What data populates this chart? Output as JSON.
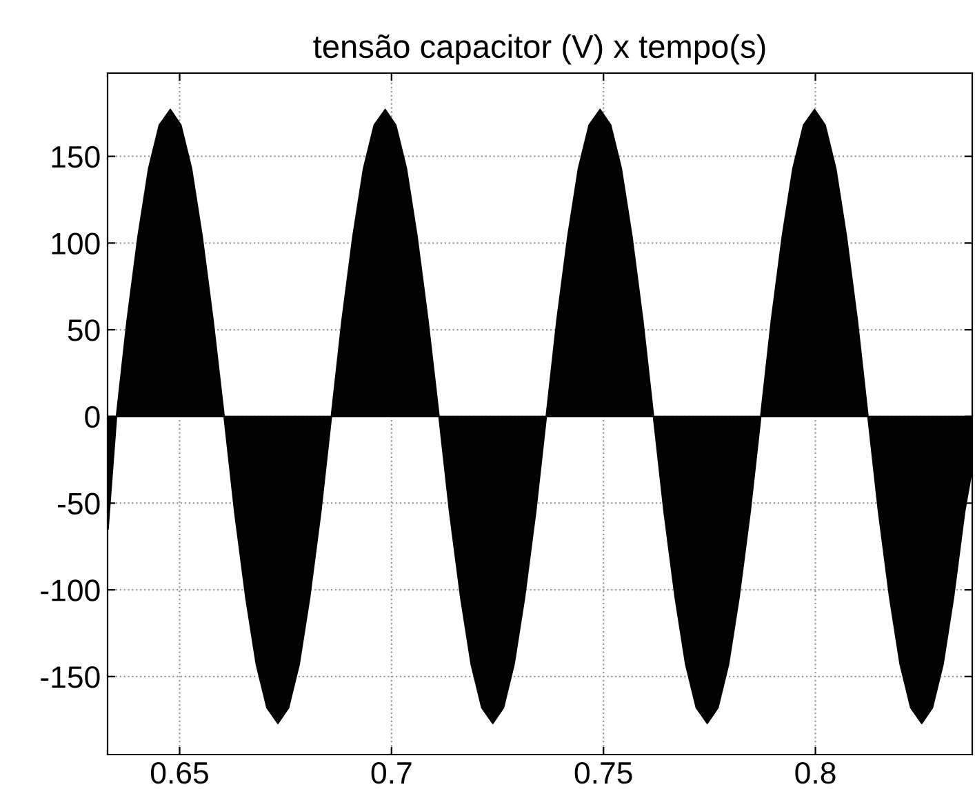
{
  "chart_data": {
    "type": "area",
    "title": "tensão capacitor (V) x tempo(s)",
    "grid": true,
    "xlim": [
      0.633,
      0.837
    ],
    "ylim": [
      -195,
      198
    ],
    "xticks": [
      0.65,
      0.7,
      0.75,
      0.8
    ],
    "yticks": [
      -150,
      -100,
      -50,
      0,
      50,
      100,
      150
    ],
    "series": [
      {
        "color": "#000000",
        "x": [
          0.6331,
          0.6351,
          0.6376,
          0.6402,
          0.6427,
          0.6452,
          0.6478,
          0.6503,
          0.6528,
          0.6553,
          0.6579,
          0.6605,
          0.663,
          0.6656,
          0.6681,
          0.6706,
          0.6732,
          0.6757,
          0.6782,
          0.6807,
          0.6833,
          0.6858,
          0.6883,
          0.6909,
          0.6934,
          0.6959,
          0.6985,
          0.701,
          0.7035,
          0.706,
          0.7086,
          0.7112,
          0.7137,
          0.7163,
          0.7188,
          0.7213,
          0.7239,
          0.7264,
          0.7289,
          0.7314,
          0.734,
          0.7365,
          0.739,
          0.7416,
          0.7441,
          0.7466,
          0.7492,
          0.7517,
          0.7542,
          0.7567,
          0.7593,
          0.7618,
          0.7643,
          0.7669,
          0.7694,
          0.7719,
          0.7745,
          0.777,
          0.7795,
          0.782,
          0.7846,
          0.7871,
          0.7896,
          0.7922,
          0.7947,
          0.7972,
          0.7998,
          0.8023,
          0.8048,
          0.8073,
          0.8099,
          0.8124,
          0.8149,
          0.8175,
          0.82,
          0.8225,
          0.8251,
          0.8276,
          0.8301,
          0.8326,
          0.8352,
          0.837
        ],
        "values": [
          -65,
          0,
          55,
          104,
          143,
          168,
          177,
          168,
          143,
          104,
          55,
          0,
          -55,
          -104,
          -143,
          -168,
          -177,
          -168,
          -143,
          -104,
          -55,
          0,
          55,
          104,
          143,
          168,
          177,
          168,
          143,
          104,
          55,
          0,
          -55,
          -104,
          -143,
          -168,
          -177,
          -168,
          -143,
          -104,
          -55,
          0,
          55,
          104,
          143,
          168,
          177,
          168,
          143,
          104,
          55,
          0,
          -55,
          -104,
          -143,
          -168,
          -177,
          -168,
          -143,
          -104,
          -55,
          0,
          55,
          104,
          143,
          168,
          177,
          168,
          143,
          104,
          55,
          0,
          -55,
          -104,
          -143,
          -168,
          -177,
          -168,
          -143,
          -104,
          -55,
          -30
        ]
      }
    ]
  }
}
